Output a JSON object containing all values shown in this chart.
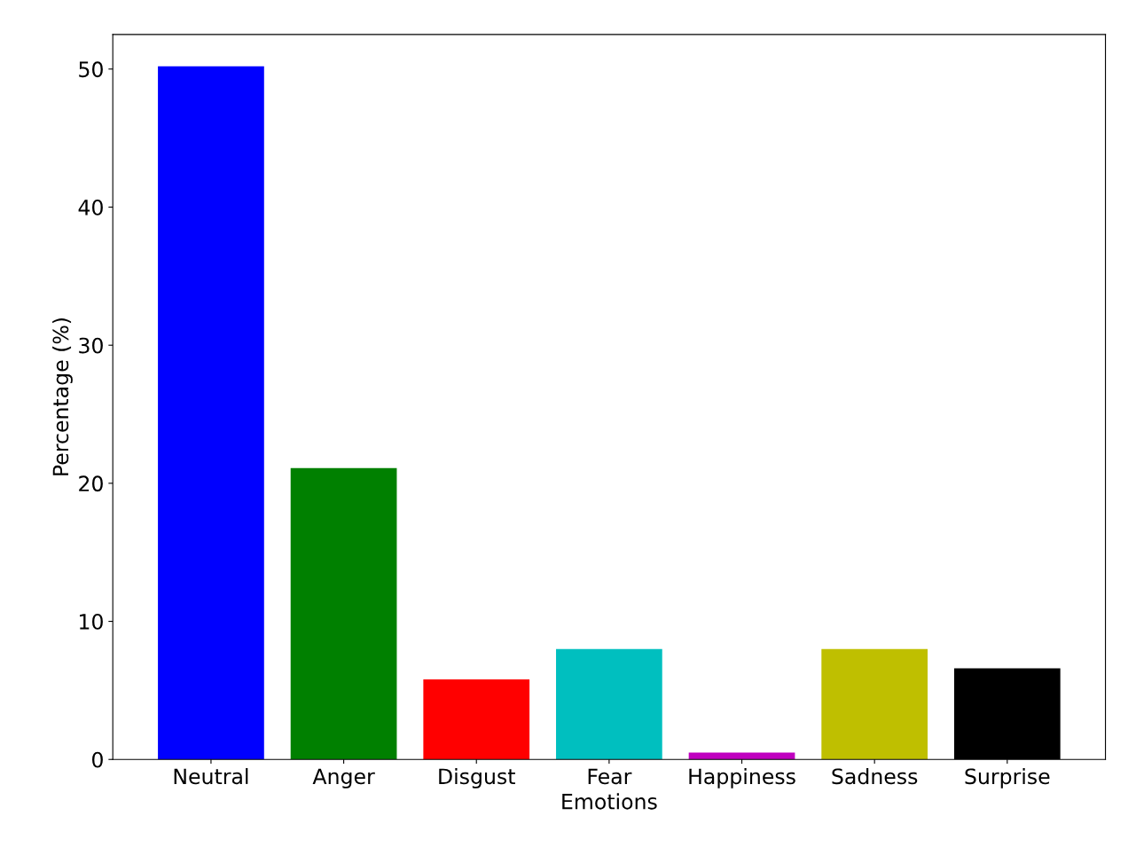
{
  "chart_data": {
    "type": "bar",
    "xlabel": "Emotions",
    "ylabel": "Percentage (%)",
    "categories": [
      "Neutral",
      "Anger",
      "Disgust",
      "Fear",
      "Happiness",
      "Sadness",
      "Surprise"
    ],
    "values": [
      50.2,
      21.1,
      5.8,
      8.0,
      0.5,
      8.0,
      6.6
    ],
    "colors": [
      "#0000ff",
      "#008000",
      "#ff0000",
      "#00bfbf",
      "#bf00bf",
      "#bfbf00",
      "#000000"
    ],
    "ylim": [
      0,
      52.5
    ],
    "yticks": [
      0,
      10,
      20,
      30,
      40,
      50
    ],
    "grid": false,
    "legend": false
  }
}
